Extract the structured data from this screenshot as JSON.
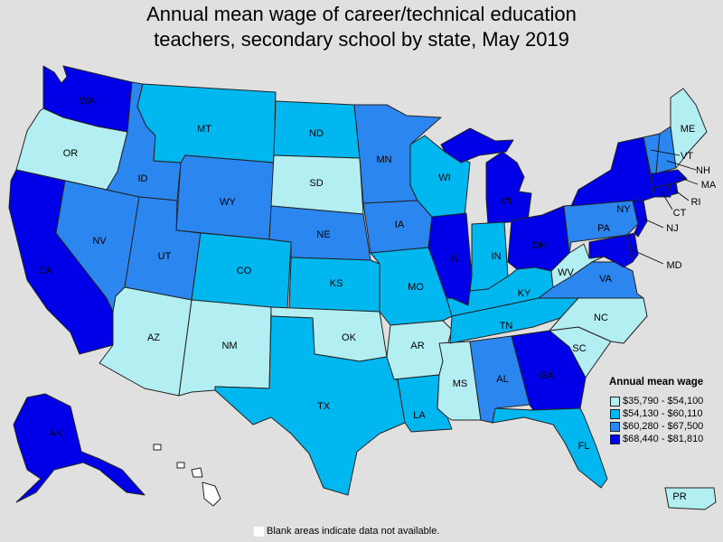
{
  "title": "Annual mean wage of career/technical education\nteachers, secondary school by state, May 2019",
  "legend": {
    "title": "Annual mean wage",
    "items": [
      {
        "range": "$35,790 - $54,100",
        "color": "#b3eef2"
      },
      {
        "range": "$54,130 - $60,110",
        "color": "#00b7ef"
      },
      {
        "range": "$60,280 - $67,500",
        "color": "#2b86f0"
      },
      {
        "range": "$68,440 - $81,810",
        "color": "#0000e8"
      }
    ]
  },
  "footnote": "Blank areas indicate data not available.",
  "colors": {
    "background": "#e0e0e0",
    "no_data": "#ffffff",
    "border": "#222222"
  },
  "states": {
    "WA": 3,
    "OR": 0,
    "CA": 3,
    "NV": 2,
    "ID": 2,
    "MT": 1,
    "WY": 2,
    "UT": 2,
    "AZ": 0,
    "CO": 1,
    "NM": 0,
    "ND": 1,
    "SD": 0,
    "NE": 2,
    "KS": 1,
    "OK": 0,
    "TX": 1,
    "MN": 2,
    "IA": 2,
    "MO": 1,
    "AR": 0,
    "LA": 1,
    "WI": 1,
    "IL": 3,
    "MI": 3,
    "IN": 1,
    "OH": 3,
    "KY": 1,
    "TN": 1,
    "MS": 0,
    "AL": 2,
    "GA": 3,
    "FL": 1,
    "SC": 0,
    "NC": 0,
    "VA": 2,
    "WV": 0,
    "PA": 2,
    "NY": 3,
    "NJ": 3,
    "DE": 3,
    "MD": 3,
    "DC": 3,
    "CT": 3,
    "RI": 3,
    "MA": 3,
    "VT": 2,
    "NH": 2,
    "ME": 0,
    "AK": 3,
    "HI": null,
    "PR": 0
  }
}
